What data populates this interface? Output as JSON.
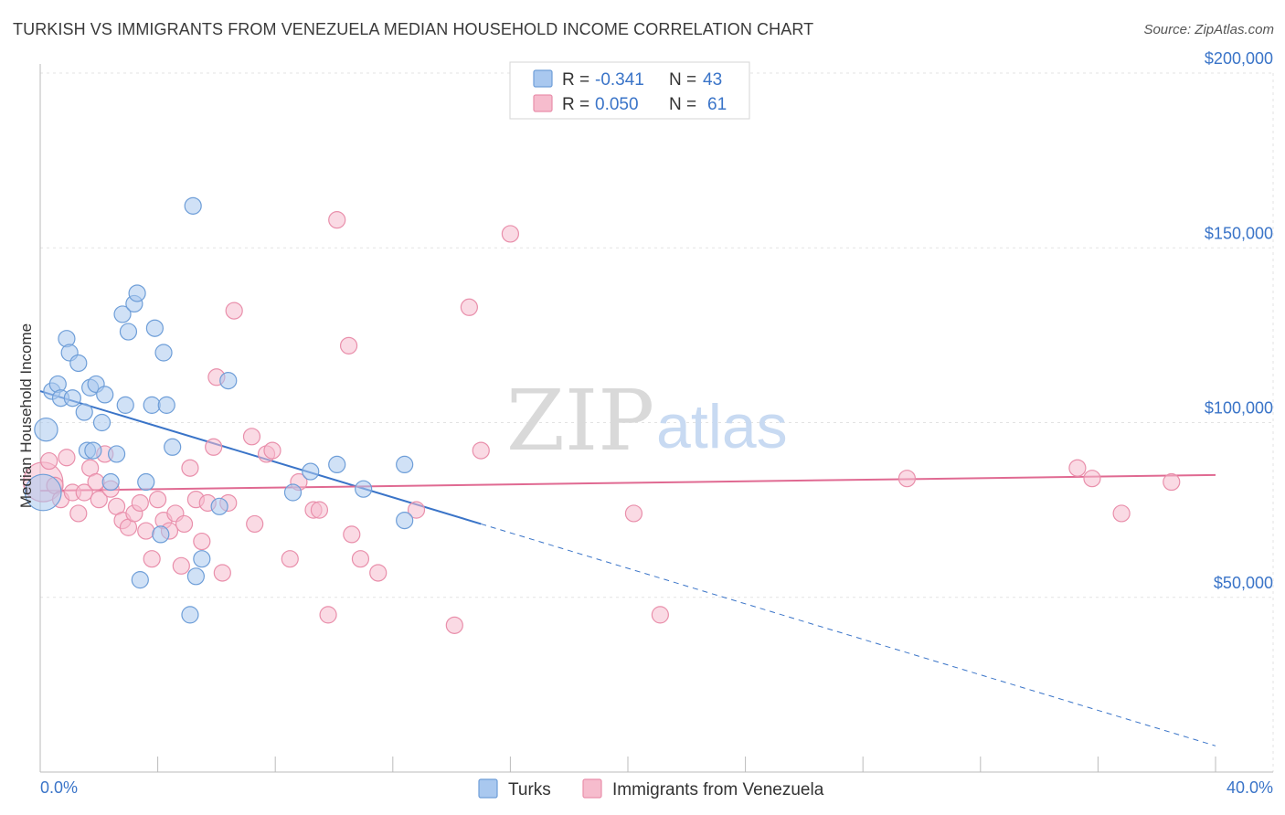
{
  "header": {
    "title": "TURKISH VS IMMIGRANTS FROM VENEZUELA MEDIAN HOUSEHOLD INCOME CORRELATION CHART",
    "source": "Source: ZipAtlas.com"
  },
  "watermark": {
    "zip": "ZIP",
    "atlas": "atlas"
  },
  "colors": {
    "turks_fill": "#a9c8ef",
    "turks_stroke": "#6e9ed8",
    "turks_line": "#3a74c8",
    "venezuela_fill": "#f6bccd",
    "venezuela_stroke": "#e98fab",
    "venezuela_line": "#e06a92",
    "grid": "#e3e3e3",
    "tick_text": "#3a74c8"
  },
  "legend": {
    "rows": [
      {
        "r_label": "R =",
        "r_value": "-0.341",
        "n_label": "N =",
        "n_value": "43"
      },
      {
        "r_label": "R =",
        "r_value": "0.050",
        "n_label": "N =",
        "n_value": "61"
      }
    ]
  },
  "chart_data": {
    "type": "scatter",
    "title": "TURKISH VS IMMIGRANTS FROM VENEZUELA MEDIAN HOUSEHOLD INCOME CORRELATION CHART",
    "xlabel": "",
    "ylabel": "Median Household Income",
    "xlim": [
      0,
      40
    ],
    "ylim": [
      0,
      210000
    ],
    "x_tick_labels": [
      "0.0%",
      "40.0%"
    ],
    "y_ticks": [
      50000,
      100000,
      150000,
      200000
    ],
    "y_tick_labels": [
      "$50,000",
      "$100,000",
      "$150,000",
      "$200,000"
    ],
    "grid": true,
    "legend_position": "top-center",
    "series": [
      {
        "name": "Turks",
        "r": -0.341,
        "n": 43,
        "trend": {
          "x": [
            0,
            15
          ],
          "y": [
            109000,
            71000
          ],
          "extended_to": {
            "x": 40,
            "y": 7500
          }
        },
        "points": [
          [
            0.1,
            80000,
            2.2
          ],
          [
            0.2,
            98000,
            1.4
          ],
          [
            0.4,
            109000,
            1
          ],
          [
            0.6,
            111000,
            1
          ],
          [
            0.7,
            107000,
            1
          ],
          [
            0.9,
            124000,
            1
          ],
          [
            1.0,
            120000,
            1
          ],
          [
            1.3,
            117000,
            1
          ],
          [
            1.1,
            107000,
            1
          ],
          [
            1.5,
            103000,
            1
          ],
          [
            1.7,
            110000,
            1
          ],
          [
            1.9,
            111000,
            1
          ],
          [
            2.2,
            108000,
            1
          ],
          [
            2.1,
            100000,
            1
          ],
          [
            1.6,
            92000,
            1
          ],
          [
            1.8,
            92000,
            1
          ],
          [
            2.6,
            91000,
            1
          ],
          [
            2.4,
            83000,
            1
          ],
          [
            2.8,
            131000,
            1
          ],
          [
            3.0,
            126000,
            1
          ],
          [
            3.2,
            134000,
            1
          ],
          [
            3.3,
            137000,
            1
          ],
          [
            2.9,
            105000,
            1
          ],
          [
            3.6,
            83000,
            1
          ],
          [
            3.4,
            55000,
            1
          ],
          [
            3.9,
            127000,
            1
          ],
          [
            4.2,
            120000,
            1
          ],
          [
            3.8,
            105000,
            1
          ],
          [
            4.3,
            105000,
            1
          ],
          [
            4.5,
            93000,
            1
          ],
          [
            4.1,
            68000,
            1
          ],
          [
            5.2,
            162000,
            1
          ],
          [
            5.5,
            61000,
            1
          ],
          [
            5.3,
            56000,
            1
          ],
          [
            5.1,
            45000,
            1
          ],
          [
            6.4,
            112000,
            1
          ],
          [
            6.1,
            76000,
            1
          ],
          [
            8.6,
            80000,
            1
          ],
          [
            9.2,
            86000,
            1
          ],
          [
            10.1,
            88000,
            1
          ],
          [
            11.0,
            81000,
            1
          ],
          [
            12.4,
            88000,
            1
          ],
          [
            12.4,
            72000,
            1
          ]
        ]
      },
      {
        "name": "Immigrants from Venezuela",
        "r": 0.05,
        "n": 61,
        "trend": {
          "x": [
            0,
            40
          ],
          "y": [
            80500,
            85000
          ]
        },
        "points": [
          [
            0.1,
            83000,
            2.4
          ],
          [
            0.3,
            89000,
            1
          ],
          [
            0.5,
            82000,
            1
          ],
          [
            0.7,
            78000,
            1
          ],
          [
            0.9,
            90000,
            1
          ],
          [
            1.1,
            80000,
            1
          ],
          [
            1.3,
            74000,
            1
          ],
          [
            1.5,
            80000,
            1
          ],
          [
            1.7,
            87000,
            1
          ],
          [
            1.9,
            83000,
            1
          ],
          [
            2.0,
            78000,
            1
          ],
          [
            2.2,
            91000,
            1
          ],
          [
            2.4,
            81000,
            1
          ],
          [
            2.6,
            76000,
            1
          ],
          [
            2.8,
            72000,
            1
          ],
          [
            3.0,
            70000,
            1
          ],
          [
            3.2,
            74000,
            1
          ],
          [
            3.4,
            77000,
            1
          ],
          [
            3.6,
            69000,
            1
          ],
          [
            3.8,
            61000,
            1
          ],
          [
            4.0,
            78000,
            1
          ],
          [
            4.2,
            72000,
            1
          ],
          [
            4.4,
            69000,
            1
          ],
          [
            4.6,
            74000,
            1
          ],
          [
            4.8,
            59000,
            1
          ],
          [
            4.9,
            71000,
            1
          ],
          [
            5.1,
            87000,
            1
          ],
          [
            5.3,
            78000,
            1
          ],
          [
            5.5,
            66000,
            1
          ],
          [
            5.7,
            77000,
            1
          ],
          [
            5.9,
            93000,
            1
          ],
          [
            6.0,
            113000,
            1
          ],
          [
            6.2,
            57000,
            1
          ],
          [
            6.4,
            77000,
            1
          ],
          [
            6.6,
            132000,
            1
          ],
          [
            7.2,
            96000,
            1
          ],
          [
            7.3,
            71000,
            1
          ],
          [
            7.7,
            91000,
            1
          ],
          [
            7.9,
            92000,
            1
          ],
          [
            8.5,
            61000,
            1
          ],
          [
            8.8,
            83000,
            1
          ],
          [
            9.3,
            75000,
            1
          ],
          [
            9.5,
            75000,
            1
          ],
          [
            9.8,
            45000,
            1
          ],
          [
            10.1,
            158000,
            1
          ],
          [
            10.5,
            122000,
            1
          ],
          [
            10.6,
            68000,
            1
          ],
          [
            10.9,
            61000,
            1
          ],
          [
            11.5,
            57000,
            1
          ],
          [
            12.8,
            75000,
            1
          ],
          [
            14.1,
            42000,
            1
          ],
          [
            14.6,
            133000,
            1
          ],
          [
            15.0,
            92000,
            1
          ],
          [
            16.0,
            154000,
            1
          ],
          [
            20.2,
            74000,
            1
          ],
          [
            21.1,
            45000,
            1
          ],
          [
            29.5,
            84000,
            1
          ],
          [
            35.3,
            87000,
            1
          ],
          [
            35.8,
            84000,
            1
          ],
          [
            36.8,
            74000,
            1
          ],
          [
            38.5,
            83000,
            1
          ]
        ]
      }
    ]
  }
}
